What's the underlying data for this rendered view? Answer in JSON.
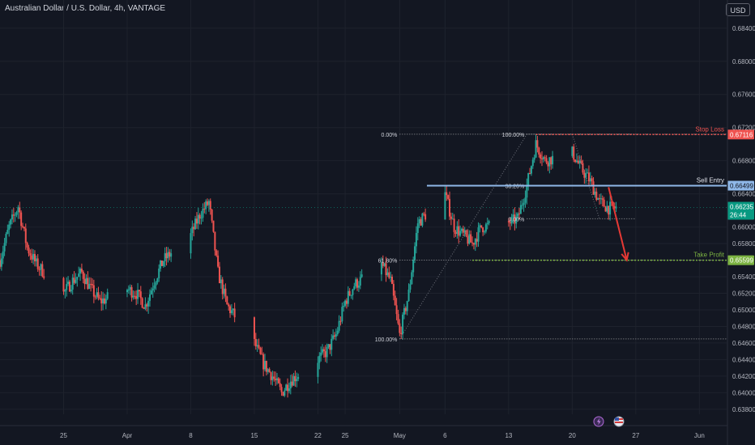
{
  "header": {
    "symbol_title": "Australian Dollar / U.S. Dollar, 4h, VANTAGE",
    "currency_button": "USD"
  },
  "colors": {
    "background": "#131722",
    "grid": "#1e222d",
    "candle_up": "#26a69a",
    "candle_down": "#ef5350",
    "stop_loss": "#ef5350",
    "sell_entry": "#8fb8e8",
    "take_profit": "#7cb342",
    "current_price": "#089981",
    "fib_dotted": "#c8c8c8",
    "arrow": "#e53935"
  },
  "chart_data": {
    "type": "candlestick",
    "title": "",
    "y_axis": {
      "ylim": [
        0.6374,
        0.6874
      ],
      "ticks": [
        "0.68400",
        "0.68000",
        "0.67600",
        "0.67200",
        "0.66800",
        "0.66400",
        "0.66000",
        "0.65800",
        "0.65400",
        "0.65200",
        "0.65000",
        "0.64800",
        "0.64600",
        "0.64400",
        "0.64200",
        "0.64000",
        "0.63800"
      ],
      "tick_values": [
        0.684,
        0.68,
        0.676,
        0.672,
        0.668,
        0.664,
        0.66,
        0.658,
        0.654,
        0.652,
        0.65,
        0.648,
        0.646,
        0.644,
        0.642,
        0.64,
        0.638
      ]
    },
    "x_axis": {
      "ticks": [
        "25",
        "Apr",
        "8",
        "15",
        "22",
        "25",
        "May",
        "6",
        "13",
        "20",
        "27",
        "Jun"
      ],
      "tick_dates": [
        "2024-03-25",
        "2024-04-01",
        "2024-04-08",
        "2024-04-15",
        "2024-04-22",
        "2024-04-25",
        "2024-05-01",
        "2024-05-06",
        "2024-05-13",
        "2024-05-20",
        "2024-05-27",
        "2024-06-03"
      ],
      "xlim": [
        "2024-03-18",
        "2024-06-06"
      ]
    },
    "price_path": [
      [
        "2024-03-18",
        0.656
      ],
      [
        "2024-03-19",
        0.66
      ],
      [
        "2024-03-20",
        0.6625
      ],
      [
        "2024-03-21",
        0.6575
      ],
      [
        "2024-03-22",
        0.6555
      ],
      [
        "2024-03-25",
        0.652
      ],
      [
        "2024-03-26",
        0.6535
      ],
      [
        "2024-03-27",
        0.6545
      ],
      [
        "2024-03-28",
        0.6525
      ],
      [
        "2024-03-29",
        0.651
      ],
      [
        "2024-04-01",
        0.6525
      ],
      [
        "2024-04-02",
        0.652
      ],
      [
        "2024-04-03",
        0.6505
      ],
      [
        "2024-04-04",
        0.6535
      ],
      [
        "2024-04-05",
        0.656
      ],
      [
        "2024-04-08",
        0.659
      ],
      [
        "2024-04-09",
        0.6615
      ],
      [
        "2024-04-10",
        0.663
      ],
      [
        "2024-04-11",
        0.6545
      ],
      [
        "2024-04-12",
        0.6505
      ],
      [
        "2024-04-15",
        0.646
      ],
      [
        "2024-04-16",
        0.6435
      ],
      [
        "2024-04-17",
        0.642
      ],
      [
        "2024-04-18",
        0.64
      ],
      [
        "2024-04-19",
        0.6415
      ],
      [
        "2024-04-22",
        0.644
      ],
      [
        "2024-04-23",
        0.645
      ],
      [
        "2024-04-24",
        0.647
      ],
      [
        "2024-04-25",
        0.651
      ],
      [
        "2024-04-26",
        0.653
      ],
      [
        "2024-04-29",
        0.6555
      ],
      [
        "2024-04-30",
        0.6535
      ],
      [
        "2024-05-01",
        0.647
      ],
      [
        "2024-05-02",
        0.652
      ],
      [
        "2024-05-03",
        0.6605
      ],
      [
        "2024-05-06",
        0.664
      ],
      [
        "2024-05-07",
        0.66
      ],
      [
        "2024-05-08",
        0.659
      ],
      [
        "2024-05-09",
        0.658
      ],
      [
        "2024-05-10",
        0.66
      ],
      [
        "2024-05-13",
        0.6605
      ],
      [
        "2024-05-14",
        0.661
      ],
      [
        "2024-05-15",
        0.665
      ],
      [
        "2024-05-16",
        0.67
      ],
      [
        "2024-05-17",
        0.668
      ],
      [
        "2024-05-20",
        0.669
      ],
      [
        "2024-05-21",
        0.667
      ],
      [
        "2024-05-22",
        0.6655
      ],
      [
        "2024-05-23",
        0.663
      ],
      [
        "2024-05-24",
        0.6623
      ]
    ],
    "horizontal_levels": [
      {
        "label": "Stop Loss",
        "price": 0.67116,
        "price_label": "0.67116",
        "style": "dotted",
        "color": "#ef5350"
      },
      {
        "label": "Sell Entry",
        "price": 0.66499,
        "price_label": "0.66499",
        "style": "solid",
        "color": "#8fb8e8"
      },
      {
        "label": "Take Profit",
        "price": 0.65599,
        "price_label": "0.65599",
        "style": "dotted",
        "color": "#7cb342"
      }
    ],
    "current_price": {
      "price": 0.66235,
      "price_label": "0.66235",
      "countdown": "26:44"
    },
    "fibonacci": [
      {
        "name": "fib-large",
        "levels": [
          {
            "label": "0.00%",
            "price": 0.6712
          },
          {
            "label": "61.80%",
            "price": 0.656
          },
          {
            "label": "100.00%",
            "price": 0.6465
          }
        ]
      },
      {
        "name": "fib-small",
        "levels": [
          {
            "label": "100.00%",
            "price": 0.6712
          },
          {
            "label": "38.20%",
            "price": 0.665
          },
          {
            "label": "0.00%",
            "price": 0.661
          }
        ]
      }
    ],
    "projection_arrow": {
      "from": [
        "2024-05-24",
        0.6648
      ],
      "to": [
        "2024-05-26",
        0.656
      ]
    },
    "grid": true,
    "legend": "none"
  }
}
